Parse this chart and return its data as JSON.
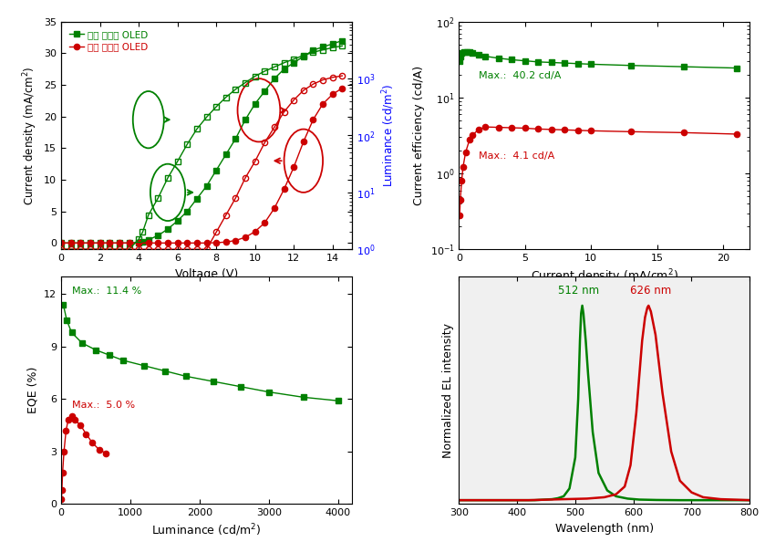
{
  "green_color": "#008000",
  "red_color": "#CC0000",
  "blue_color": "#0000FF",
  "jv_green_voltage": [
    0,
    0.5,
    1.0,
    1.5,
    2.0,
    2.5,
    3.0,
    3.5,
    4.0,
    4.2,
    4.5,
    5.0,
    5.5,
    6.0,
    6.5,
    7.0,
    7.5,
    8.0,
    8.5,
    9.0,
    9.5,
    10.0,
    10.5,
    11.0,
    11.5,
    12.0,
    12.5,
    13.0,
    13.5,
    14.0,
    14.5
  ],
  "jv_green_current": [
    0,
    0,
    0,
    0,
    0,
    0,
    0,
    0,
    0.1,
    0.2,
    0.5,
    1.2,
    2.2,
    3.5,
    5.0,
    7.0,
    9.0,
    11.5,
    14.0,
    16.5,
    19.5,
    22.0,
    24.0,
    26.0,
    27.5,
    28.5,
    29.5,
    30.5,
    31.0,
    31.5,
    32.0
  ],
  "jv_red_voltage": [
    0,
    0.5,
    1.0,
    1.5,
    2.0,
    2.5,
    3.0,
    3.5,
    4.0,
    4.5,
    5.0,
    5.5,
    6.0,
    6.5,
    7.0,
    7.5,
    8.0,
    8.5,
    9.0,
    9.5,
    10.0,
    10.5,
    11.0,
    11.5,
    12.0,
    12.5,
    13.0,
    13.5,
    14.0,
    14.5
  ],
  "jv_red_current": [
    0,
    0,
    0,
    0,
    0,
    0,
    0,
    0,
    0,
    0,
    0,
    0,
    0,
    0,
    0,
    0,
    0.05,
    0.15,
    0.4,
    0.9,
    1.8,
    3.2,
    5.5,
    8.5,
    12.0,
    16.0,
    19.5,
    22.0,
    23.5,
    24.5
  ],
  "lv_green_voltage": [
    0,
    0.5,
    1.0,
    1.5,
    2.0,
    2.5,
    3.0,
    3.5,
    4.0,
    4.2,
    4.5,
    5.0,
    5.5,
    6.0,
    6.5,
    7.0,
    7.5,
    8.0,
    8.5,
    9.0,
    9.5,
    10.0,
    10.5,
    11.0,
    11.5,
    12.0,
    12.5,
    13.0,
    13.5,
    14.0,
    14.5
  ],
  "lv_green_lum": [
    1,
    1,
    1,
    1,
    1,
    1,
    1,
    1,
    1.5,
    2,
    4,
    8,
    18,
    35,
    70,
    130,
    210,
    320,
    470,
    650,
    850,
    1100,
    1350,
    1600,
    1900,
    2200,
    2550,
    2900,
    3200,
    3500,
    3750
  ],
  "lv_red_voltage": [
    0,
    0.5,
    1.0,
    1.5,
    2.0,
    2.5,
    3.0,
    3.5,
    4.0,
    4.5,
    5.0,
    5.5,
    6.0,
    6.5,
    7.0,
    7.5,
    8.0,
    8.5,
    9.0,
    9.5,
    10.0,
    10.5,
    11.0,
    11.5,
    12.0,
    12.5,
    13.0,
    13.5,
    14.0,
    14.5
  ],
  "lv_red_lum": [
    1,
    1,
    1,
    1,
    1,
    1,
    1,
    1,
    1,
    1,
    1,
    1,
    1,
    1,
    1,
    1,
    2,
    4,
    8,
    18,
    35,
    75,
    140,
    260,
    420,
    620,
    800,
    950,
    1050,
    1120
  ],
  "ce_green_jd": [
    0.05,
    0.1,
    0.2,
    0.4,
    0.6,
    0.8,
    1.0,
    1.5,
    2.0,
    3.0,
    4.0,
    5.0,
    6.0,
    7.0,
    8.0,
    9.0,
    10.0,
    13.0,
    17.0,
    21.0
  ],
  "ce_green_ce": [
    30.0,
    35.0,
    38.5,
    40.0,
    40.2,
    39.5,
    38.5,
    36.5,
    35.0,
    33.0,
    31.5,
    30.5,
    29.5,
    29.0,
    28.5,
    28.0,
    27.5,
    26.5,
    25.5,
    24.5
  ],
  "ce_red_jd": [
    0.05,
    0.1,
    0.2,
    0.3,
    0.5,
    0.8,
    1.0,
    1.5,
    2.0,
    3.0,
    4.0,
    5.0,
    6.0,
    7.0,
    8.0,
    9.0,
    10.0,
    13.0,
    17.0,
    21.0
  ],
  "ce_red_ce": [
    0.28,
    0.45,
    0.8,
    1.2,
    1.9,
    2.8,
    3.2,
    3.8,
    4.1,
    4.05,
    4.0,
    3.95,
    3.85,
    3.8,
    3.75,
    3.7,
    3.65,
    3.55,
    3.45,
    3.3
  ],
  "eqe_green_lum": [
    30,
    80,
    150,
    300,
    500,
    700,
    900,
    1200,
    1500,
    1800,
    2200,
    2600,
    3000,
    3500,
    4000
  ],
  "eqe_green_eqe": [
    11.4,
    10.5,
    9.8,
    9.2,
    8.8,
    8.5,
    8.2,
    7.9,
    7.6,
    7.3,
    7.0,
    6.7,
    6.4,
    6.1,
    5.9
  ],
  "eqe_red_lum": [
    5,
    10,
    20,
    40,
    70,
    100,
    150,
    200,
    280,
    360,
    450,
    550,
    650
  ],
  "eqe_red_eqe": [
    0.3,
    0.8,
    1.8,
    3.0,
    4.2,
    4.8,
    5.0,
    4.8,
    4.5,
    4.0,
    3.5,
    3.1,
    2.9
  ],
  "el_wavelength_green": [
    300,
    380,
    430,
    460,
    470,
    480,
    490,
    500,
    505,
    508,
    510,
    512,
    514,
    518,
    522,
    530,
    540,
    555,
    570,
    590,
    610,
    640,
    680,
    730,
    800
  ],
  "el_green_intensity": [
    0,
    0,
    0,
    0.005,
    0.01,
    0.02,
    0.06,
    0.22,
    0.52,
    0.82,
    0.96,
    1.0,
    0.96,
    0.82,
    0.65,
    0.35,
    0.14,
    0.05,
    0.02,
    0.008,
    0.003,
    0.001,
    0.0,
    0.0,
    0
  ],
  "el_wavelength_red": [
    300,
    420,
    480,
    520,
    550,
    570,
    585,
    595,
    605,
    615,
    620,
    624,
    626,
    630,
    638,
    650,
    665,
    680,
    700,
    720,
    750,
    800
  ],
  "el_red_intensity": [
    0,
    0,
    0.005,
    0.008,
    0.015,
    0.03,
    0.07,
    0.18,
    0.45,
    0.82,
    0.94,
    0.99,
    1.0,
    0.97,
    0.85,
    0.55,
    0.25,
    0.1,
    0.04,
    0.015,
    0.005,
    0
  ]
}
